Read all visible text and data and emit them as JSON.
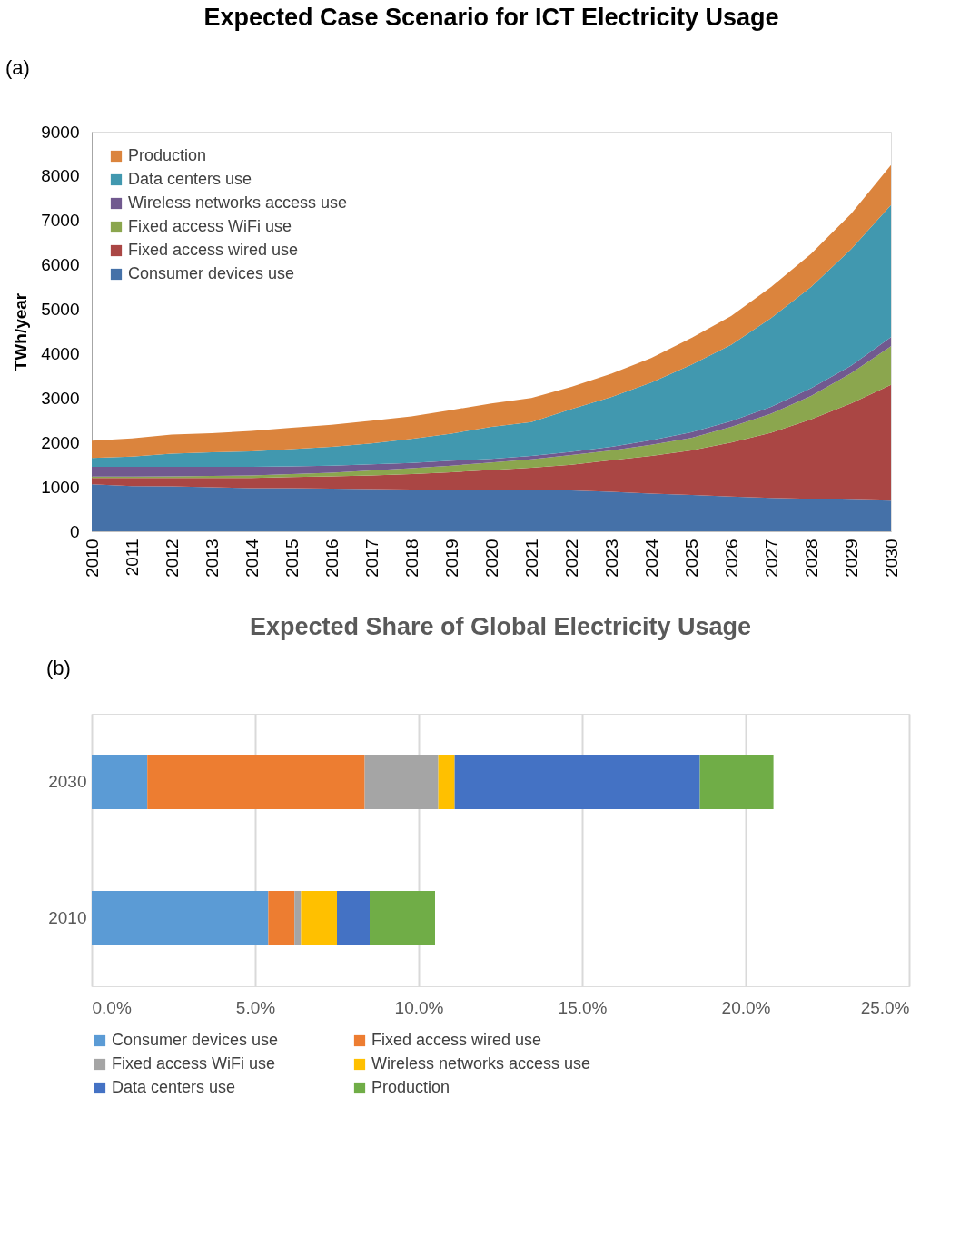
{
  "chart_data": [
    {
      "type": "area",
      "title": "Expected Case Scenario for ICT Electricity Usage",
      "annotations": [
        "(a)"
      ],
      "ylabel": "TWh/year",
      "stacked": true,
      "legend": "top left",
      "grid": false,
      "x": [
        2010,
        2011,
        2012,
        2013,
        2014,
        2015,
        2016,
        2017,
        2018,
        2019,
        2020,
        2021,
        2022,
        2023,
        2024,
        2025,
        2026,
        2027,
        2028,
        2029,
        2030
      ],
      "xlim": [
        2010,
        2030
      ],
      "xticks": [
        2010,
        2011,
        2012,
        2013,
        2014,
        2015,
        2016,
        2017,
        2018,
        2019,
        2020,
        2021,
        2022,
        2023,
        2024,
        2025,
        2026,
        2027,
        2028,
        2029,
        2030
      ],
      "ylim": [
        0,
        9000
      ],
      "yticks": [
        0,
        1000,
        2000,
        3000,
        4000,
        5000,
        6000,
        7000,
        8000,
        9000
      ],
      "series": [
        {
          "name": "Consumer devices use",
          "color": "#4571a8",
          "values": [
            1060,
            1020,
            1010,
            990,
            970,
            970,
            960,
            950,
            940,
            940,
            940,
            940,
            920,
            890,
            850,
            820,
            780,
            750,
            730,
            710,
            690
          ]
        },
        {
          "name": "Fixed access wired use",
          "color": "#aa4644",
          "values": [
            140,
            180,
            190,
            210,
            230,
            250,
            280,
            310,
            350,
            390,
            440,
            490,
            580,
            710,
            850,
            1000,
            1220,
            1470,
            1790,
            2170,
            2610
          ]
        },
        {
          "name": "Fixed access WiFi use",
          "color": "#8ba64e",
          "values": [
            30,
            30,
            40,
            50,
            60,
            70,
            80,
            110,
            130,
            150,
            170,
            190,
            220,
            220,
            250,
            280,
            350,
            430,
            530,
            680,
            870
          ]
        },
        {
          "name": "Wireless networks access use",
          "color": "#71598f",
          "values": [
            220,
            220,
            210,
            200,
            190,
            170,
            160,
            140,
            120,
            110,
            80,
            80,
            70,
            80,
            100,
            130,
            130,
            150,
            170,
            170,
            200
          ]
        },
        {
          "name": "Data centers use",
          "color": "#4198af",
          "values": [
            200,
            230,
            300,
            330,
            350,
            390,
            420,
            470,
            540,
            610,
            720,
            760,
            960,
            1120,
            1300,
            1520,
            1720,
            2000,
            2280,
            2620,
            2980
          ]
        },
        {
          "name": "Production",
          "color": "#db843d",
          "values": [
            390,
            410,
            430,
            430,
            460,
            480,
            500,
            510,
            510,
            530,
            530,
            540,
            500,
            530,
            550,
            600,
            650,
            700,
            750,
            800,
            900
          ]
        }
      ]
    },
    {
      "type": "bar",
      "orientation": "horizontal",
      "stacked": true,
      "title": "Expected Share of Global Electricity Usage",
      "annotations": [
        "(b)"
      ],
      "legend": "bottom",
      "grid": "x",
      "categories": [
        "2030",
        "2010"
      ],
      "xlim": [
        0,
        25
      ],
      "xticks": [
        {
          "value": 0,
          "label": "0.0%"
        },
        {
          "value": 5,
          "label": "5.0%"
        },
        {
          "value": 10,
          "label": "10.0%"
        },
        {
          "value": 15,
          "label": "15.0%"
        },
        {
          "value": 20,
          "label": "20.0%"
        },
        {
          "value": 25,
          "label": "25.0%"
        }
      ],
      "series": [
        {
          "name": "Consumer devices use",
          "color": "#5b9bd5",
          "values": [
            1.7,
            5.4
          ]
        },
        {
          "name": "Fixed access wired use",
          "color": "#ed7d31",
          "values": [
            6.65,
            0.8
          ]
        },
        {
          "name": "Fixed access WiFi use",
          "color": "#a5a5a5",
          "values": [
            2.25,
            0.2
          ]
        },
        {
          "name": "Wireless networks access use",
          "color": "#ffc000",
          "values": [
            0.5,
            1.1
          ]
        },
        {
          "name": "Data centers use",
          "color": "#4472c4",
          "values": [
            7.5,
            1.0
          ]
        },
        {
          "name": "Production",
          "color": "#70ad47",
          "values": [
            2.25,
            2.0
          ]
        }
      ]
    }
  ]
}
